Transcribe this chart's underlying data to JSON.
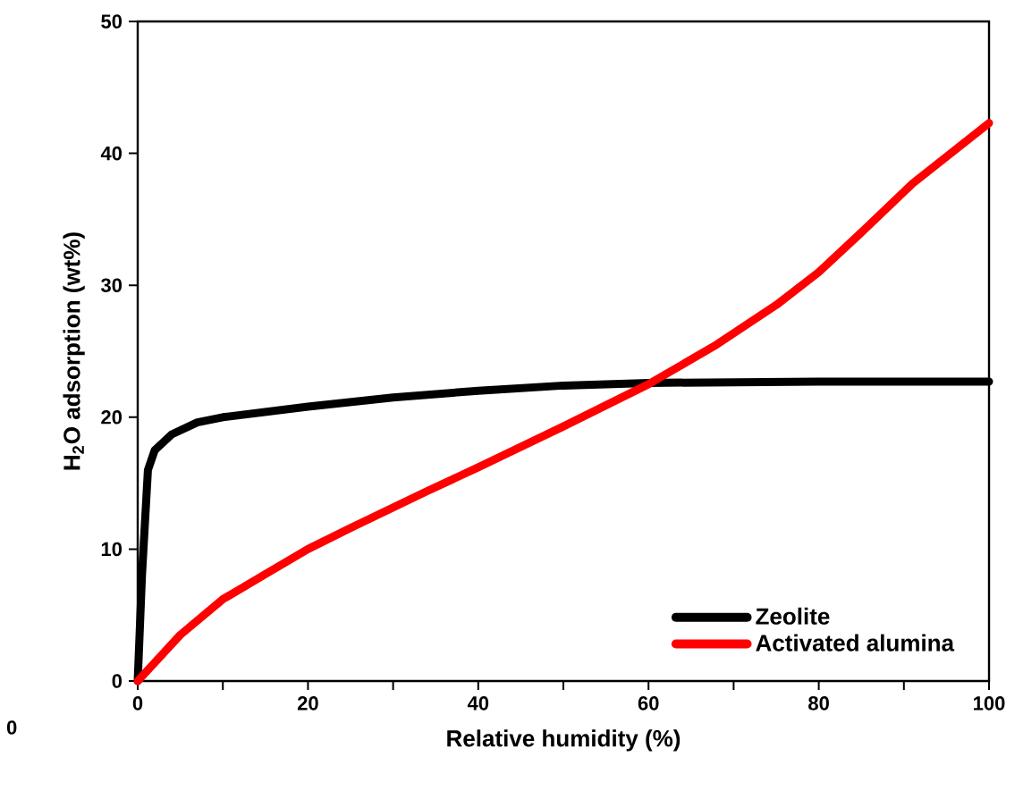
{
  "chart_data": {
    "type": "line",
    "xlabel": "Relative humidity (%)",
    "ylabel": "H$_{2}$O adsorption (wt%)",
    "xlim": [
      0,
      100
    ],
    "ylim": [
      0,
      50
    ],
    "xticks": [
      0,
      {
        "value": 10,
        "label": null
      },
      20,
      {
        "value": 30,
        "label": null
      },
      40,
      {
        "value": 50,
        "label": null
      },
      60,
      {
        "value": 70,
        "label": null
      },
      80,
      {
        "value": 90,
        "label": null
      },
      100
    ],
    "yticks": [
      0,
      10,
      20,
      30,
      40,
      50
    ],
    "legend": "bottom right",
    "annotations": [
      "0"
    ],
    "series": [
      {
        "name": "Zeolite",
        "color": "#000000",
        "x": [
          0,
          0.5,
          1.2,
          2,
          4,
          7,
          10,
          20,
          30,
          40,
          50,
          60,
          80,
          100
        ],
        "values": [
          0,
          8,
          16,
          17.5,
          18.7,
          19.6,
          20,
          20.8,
          21.5,
          22,
          22.4,
          22.6,
          22.7,
          22.7
        ]
      },
      {
        "name": "Activated alumina",
        "color": "#ff0000",
        "x": [
          0,
          5,
          10,
          15,
          20,
          25,
          34,
          40,
          50,
          60,
          68,
          75,
          80,
          85,
          91,
          100
        ],
        "values": [
          0,
          3.5,
          6.2,
          8.1,
          10,
          11.6,
          14.4,
          16.2,
          19.3,
          22.5,
          25.5,
          28.5,
          31,
          34,
          37.7,
          42.3
        ]
      }
    ]
  }
}
